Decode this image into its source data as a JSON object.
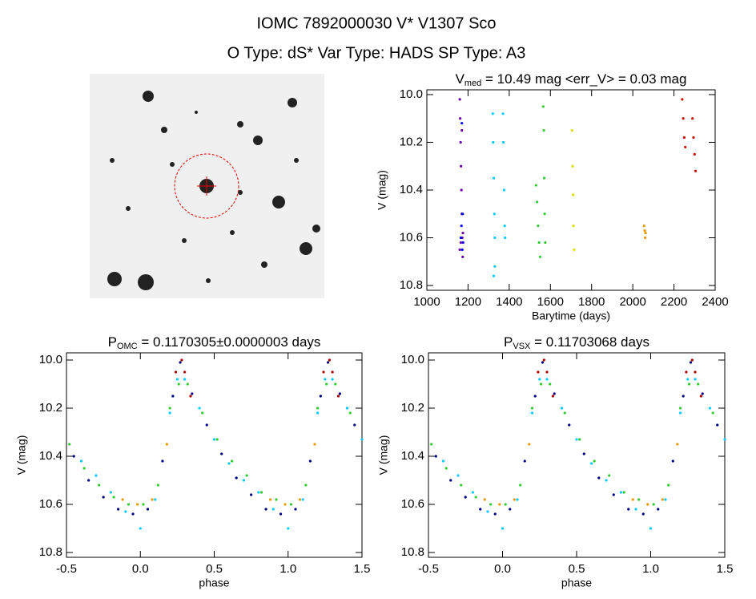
{
  "header": {
    "title": "IOMC 7892000030    V* V1307 Sco",
    "subtitle": "O Type: dS*  Var Type: HADS  SP Type: A3"
  },
  "chart_data": [
    {
      "type": "scatter",
      "title": {
        "main": "V",
        "sub": "med",
        "rest": " = 10.49 mag <err_V> = 0.03 mag"
      },
      "x_label": "Barytime (days)",
      "y_label": "V (mag)",
      "xlim": [
        1000,
        2400
      ],
      "xticks": [
        1000,
        1200,
        1400,
        1600,
        1800,
        2000,
        2200,
        2400
      ],
      "ylim": [
        9.98,
        10.82
      ],
      "y_inverted": true,
      "yticks": [
        {
          "value": 10,
          "label": "10.0"
        },
        10.2,
        10.4,
        10.6,
        10.8
      ],
      "series": [
        {
          "color": "#6a00a8",
          "x": [
            1160,
            1162,
            1164,
            1166,
            1168,
            1170,
            1172,
            1174,
            1160,
            1165,
            1170,
            1175
          ],
          "values": [
            10.02,
            10.1,
            10.2,
            10.3,
            10.4,
            10.5,
            10.6,
            10.68,
            10.65,
            10.62,
            10.15,
            10.58
          ]
        },
        {
          "color": "#0000ff",
          "x": [
            1165,
            1168,
            1172,
            1176,
            1170,
            1174
          ],
          "values": [
            10.6,
            10.55,
            10.65,
            10.62,
            10.12,
            10.5
          ]
        },
        {
          "color": "#00ccff",
          "x": [
            1320,
            1322,
            1325,
            1328,
            1330,
            1370,
            1372,
            1375,
            1378,
            1380,
            1330,
            1325
          ],
          "values": [
            10.08,
            10.2,
            10.35,
            10.5,
            10.6,
            10.08,
            10.2,
            10.4,
            10.55,
            10.6,
            10.72,
            10.76
          ]
        },
        {
          "color": "#33cc33",
          "x": [
            1530,
            1535,
            1540,
            1545,
            1550,
            1565,
            1568,
            1570,
            1572,
            1575
          ],
          "values": [
            10.38,
            10.45,
            10.55,
            10.62,
            10.68,
            10.05,
            10.15,
            10.35,
            10.5,
            10.62
          ]
        },
        {
          "color": "#dddd00",
          "x": [
            1705,
            1708,
            1710,
            1712,
            1715
          ],
          "values": [
            10.15,
            10.3,
            10.42,
            10.55,
            10.65
          ]
        },
        {
          "color": "#e69a00",
          "x": [
            2055,
            2058,
            2060,
            2062
          ],
          "values": [
            10.55,
            10.57,
            10.6,
            10.58
          ]
        },
        {
          "color": "#cc1100",
          "x": [
            2240,
            2245,
            2250,
            2255,
            2290,
            2295,
            2300,
            2305
          ],
          "values": [
            10.02,
            10.1,
            10.18,
            10.22,
            10.1,
            10.18,
            10.25,
            10.32
          ]
        }
      ]
    },
    {
      "type": "scatter",
      "title": {
        "main": "P",
        "sub": "OMC",
        "rest": " = 0.1170305±0.0000003 days"
      },
      "x_label": "phase",
      "y_label": "V (mag)",
      "xlim": [
        -0.5,
        1.5
      ],
      "xticks": [
        -0.5,
        {
          "value": 0,
          "label": "0.0"
        },
        0.5,
        {
          "value": 1,
          "label": "1.0"
        },
        1.5
      ],
      "ylim": [
        9.97,
        10.82
      ],
      "y_inverted": true,
      "yticks": [
        {
          "value": 10,
          "label": "10.0"
        },
        10.2,
        10.4,
        10.6,
        10.8
      ],
      "series": [
        {
          "color": "#000080",
          "x": [
            -0.45,
            -0.35,
            -0.25,
            -0.15,
            -0.05,
            0.05,
            0.15,
            0.22,
            0.27,
            0.35,
            0.45,
            0.55,
            0.65,
            0.75,
            0.85,
            0.95,
            1.05,
            1.15,
            1.22,
            1.27,
            1.35,
            1.45
          ],
          "values": [
            10.4,
            10.5,
            10.57,
            10.62,
            10.64,
            10.62,
            10.42,
            10.15,
            10.01,
            10.14,
            10.27,
            10.39,
            10.49,
            10.56,
            10.62,
            10.64,
            10.62,
            10.42,
            10.15,
            10.01,
            10.14,
            10.27
          ]
        },
        {
          "color": "#00ccff",
          "x": [
            -0.4,
            -0.3,
            -0.2,
            -0.1,
            0.0,
            0.1,
            0.2,
            0.25,
            0.3,
            0.4,
            0.5,
            0.6,
            0.7,
            0.8,
            0.9,
            1.0,
            1.1,
            1.2,
            1.25,
            1.3,
            1.4,
            1.5
          ],
          "values": [
            10.42,
            10.48,
            10.55,
            10.63,
            10.7,
            10.58,
            10.22,
            10.08,
            10.08,
            10.2,
            10.33,
            10.43,
            10.5,
            10.55,
            10.62,
            10.7,
            10.58,
            10.22,
            10.08,
            10.08,
            10.2,
            10.33
          ]
        },
        {
          "color": "#33cc33",
          "x": [
            -0.48,
            -0.38,
            -0.28,
            -0.18,
            -0.08,
            0.02,
            0.12,
            0.2,
            0.26,
            0.32,
            0.42,
            0.52,
            0.62,
            0.72,
            0.82,
            0.92,
            1.02,
            1.12,
            1.2,
            1.26,
            1.32,
            1.42
          ],
          "values": [
            10.35,
            10.45,
            10.52,
            10.57,
            10.6,
            10.6,
            10.52,
            10.2,
            10.1,
            10.1,
            10.22,
            10.33,
            10.42,
            10.48,
            10.55,
            10.58,
            10.6,
            10.52,
            10.2,
            10.1,
            10.1,
            10.22
          ]
        },
        {
          "color": "#e69a00",
          "x": [
            -0.12,
            -0.02,
            0.08,
            0.18,
            0.88,
            0.98,
            1.08,
            1.18
          ],
          "values": [
            10.58,
            10.6,
            10.58,
            10.35,
            10.58,
            10.6,
            10.58,
            10.35
          ]
        },
        {
          "color": "#aa0000",
          "x": [
            0.24,
            0.28,
            0.3,
            0.34,
            1.24,
            1.28,
            1.3,
            1.34
          ],
          "values": [
            10.05,
            10.0,
            10.05,
            10.15,
            10.05,
            10.0,
            10.05,
            10.15
          ]
        }
      ]
    },
    {
      "type": "scatter",
      "title": {
        "main": "P",
        "sub": "VSX",
        "rest": " = 0.11703068 days"
      },
      "x_label": "phase",
      "y_label": "V (mag)",
      "xlim": [
        -0.5,
        1.5
      ],
      "xticks": [
        -0.5,
        {
          "value": 0,
          "label": "0.0"
        },
        0.5,
        {
          "value": 1,
          "label": "1.0"
        },
        1.5
      ],
      "ylim": [
        9.97,
        10.82
      ],
      "y_inverted": true,
      "yticks": [
        {
          "value": 10,
          "label": "10.0"
        },
        10.2,
        10.4,
        10.6,
        10.8
      ],
      "series": [
        {
          "color": "#000080",
          "x": [
            -0.45,
            -0.35,
            -0.25,
            -0.15,
            -0.05,
            0.05,
            0.15,
            0.22,
            0.27,
            0.35,
            0.45,
            0.55,
            0.65,
            0.75,
            0.85,
            0.95,
            1.05,
            1.15,
            1.22,
            1.27,
            1.35,
            1.45
          ],
          "values": [
            10.4,
            10.5,
            10.57,
            10.62,
            10.64,
            10.62,
            10.42,
            10.15,
            10.01,
            10.14,
            10.27,
            10.39,
            10.49,
            10.56,
            10.62,
            10.64,
            10.62,
            10.42,
            10.15,
            10.01,
            10.14,
            10.27
          ]
        },
        {
          "color": "#00ccff",
          "x": [
            -0.4,
            -0.3,
            -0.2,
            -0.1,
            0.0,
            0.1,
            0.2,
            0.25,
            0.3,
            0.4,
            0.5,
            0.6,
            0.7,
            0.8,
            0.9,
            1.0,
            1.1,
            1.2,
            1.25,
            1.3,
            1.4,
            1.5
          ],
          "values": [
            10.42,
            10.48,
            10.55,
            10.63,
            10.7,
            10.58,
            10.22,
            10.08,
            10.08,
            10.2,
            10.33,
            10.43,
            10.5,
            10.55,
            10.62,
            10.7,
            10.58,
            10.22,
            10.08,
            10.08,
            10.2,
            10.33
          ]
        },
        {
          "color": "#33cc33",
          "x": [
            -0.48,
            -0.38,
            -0.28,
            -0.18,
            -0.08,
            0.02,
            0.12,
            0.2,
            0.26,
            0.32,
            0.42,
            0.52,
            0.62,
            0.72,
            0.82,
            0.92,
            1.02,
            1.12,
            1.2,
            1.26,
            1.32,
            1.42
          ],
          "values": [
            10.35,
            10.45,
            10.52,
            10.57,
            10.6,
            10.6,
            10.52,
            10.2,
            10.1,
            10.1,
            10.22,
            10.33,
            10.42,
            10.48,
            10.55,
            10.58,
            10.6,
            10.52,
            10.2,
            10.1,
            10.1,
            10.22
          ]
        },
        {
          "color": "#e69a00",
          "x": [
            -0.12,
            -0.02,
            0.08,
            0.18,
            0.88,
            0.98,
            1.08,
            1.18
          ],
          "values": [
            10.58,
            10.6,
            10.58,
            10.35,
            10.58,
            10.6,
            10.58,
            10.35
          ]
        },
        {
          "color": "#aa0000",
          "x": [
            0.24,
            0.28,
            0.3,
            0.34,
            1.24,
            1.28,
            1.3,
            1.34
          ],
          "values": [
            10.05,
            10.0,
            10.05,
            10.15,
            10.05,
            10.0,
            10.05,
            10.15
          ]
        }
      ]
    }
  ]
}
